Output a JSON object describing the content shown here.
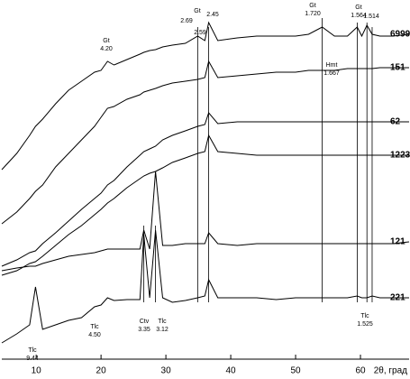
{
  "chart_data": {
    "type": "line",
    "x_label": "2θ, град",
    "xlim": [
      4.7,
      67.5
    ],
    "xticks": [
      10,
      20,
      30,
      40,
      50,
      60
    ],
    "ylim": [
      0,
      398
    ],
    "x": [
      4.7,
      7,
      9,
      9.9,
      11,
      13,
      15,
      17,
      19,
      20,
      21,
      22,
      24,
      26,
      26.6,
      27.5,
      28.4,
      29.5,
      31,
      33,
      34.9,
      36,
      36.6,
      38,
      41,
      44,
      47,
      50,
      52,
      54.1,
      56,
      58,
      59.5,
      60.2,
      61,
      61.8,
      63,
      65,
      67.5
    ],
    "series": [
      {
        "name": "6999",
        "color": "#000000",
        "values": [
          210,
          228,
          248,
          258,
          266,
          283,
          298,
          308,
          318,
          320,
          330,
          326,
          332,
          338,
          340,
          342,
          343,
          346,
          348,
          350,
          358,
          353,
          373,
          353,
          356,
          358,
          358,
          358,
          360,
          368,
          358,
          358,
          368,
          358,
          370,
          360,
          358,
          358,
          360
        ]
      },
      {
        "name": "151",
        "color": "#000000",
        "values": [
          150,
          163,
          178,
          186,
          193,
          213,
          228,
          243,
          258,
          268,
          278,
          280,
          288,
          293,
          296,
          298,
          300,
          303,
          306,
          308,
          310,
          312,
          330,
          312,
          314,
          316,
          318,
          318,
          320,
          320,
          320,
          322,
          322,
          322,
          322,
          322,
          323,
          323,
          323
        ]
      },
      {
        "name": "62",
        "color": "#000000",
        "values": [
          103,
          110,
          118,
          120,
          128,
          140,
          153,
          166,
          178,
          184,
          193,
          198,
          213,
          226,
          230,
          233,
          236,
          243,
          248,
          253,
          258,
          260,
          273,
          261,
          263,
          263,
          263,
          263,
          263,
          263,
          263,
          263,
          263,
          263,
          263,
          263,
          263,
          263,
          263
        ]
      },
      {
        "name": "1223",
        "color": "#000000",
        "values": [
          93,
          98,
          106,
          108,
          114,
          126,
          138,
          148,
          160,
          166,
          173,
          178,
          190,
          200,
          203,
          206,
          208,
          212,
          218,
          223,
          228,
          230,
          248,
          230,
          228,
          226,
          226,
          226,
          226,
          226,
          226,
          226,
          226,
          226,
          226,
          226,
          226,
          226,
          226
        ]
      },
      {
        "name": "121",
        "color": "#000000",
        "values": [
          98,
          101,
          103,
          103,
          106,
          110,
          114,
          116,
          118,
          120,
          122,
          122,
          122,
          122,
          143,
          122,
          208,
          126,
          126,
          128,
          128,
          128,
          140,
          128,
          126,
          128,
          128,
          128,
          128,
          128,
          128,
          128,
          128,
          128,
          128,
          128,
          128,
          128,
          130
        ]
      },
      {
        "name": "221",
        "color": "#000000",
        "values": [
          18,
          28,
          38,
          80,
          33,
          38,
          43,
          46,
          58,
          60,
          68,
          65,
          66,
          66,
          138,
          68,
          143,
          68,
          63,
          65,
          68,
          70,
          88,
          68,
          68,
          68,
          66,
          68,
          68,
          68,
          68,
          68,
          70,
          68,
          68,
          70,
          68,
          68,
          68
        ]
      }
    ],
    "reference_lines": [
      26.6,
      28.4,
      34.9,
      36.6,
      54.1,
      59.5,
      61.0,
      61.8
    ],
    "annotations": [
      {
        "lines": [
          "Gt",
          "4.20"
        ]
      },
      {
        "lines": [
          "Gt"
        ]
      },
      {
        "lines": [
          "2.69"
        ]
      },
      {
        "lines": [
          "2.45"
        ]
      },
      {
        "lines": [
          "2.59"
        ]
      },
      {
        "lines": [
          "Gt",
          "1.720"
        ]
      },
      {
        "lines": [
          "Hmt",
          "1.667"
        ]
      },
      {
        "lines": [
          "Gt",
          "1.564"
        ]
      },
      {
        "lines": [
          "1.514"
        ]
      },
      {
        "lines": [
          "Tlc",
          "9.44"
        ]
      },
      {
        "lines": [
          "Tlc",
          "4.50"
        ]
      },
      {
        "lines": [
          "Ctv",
          "3.35"
        ]
      },
      {
        "lines": [
          "Tlc",
          "3.12"
        ]
      },
      {
        "lines": [
          "Tlc",
          "1.525"
        ]
      }
    ]
  }
}
